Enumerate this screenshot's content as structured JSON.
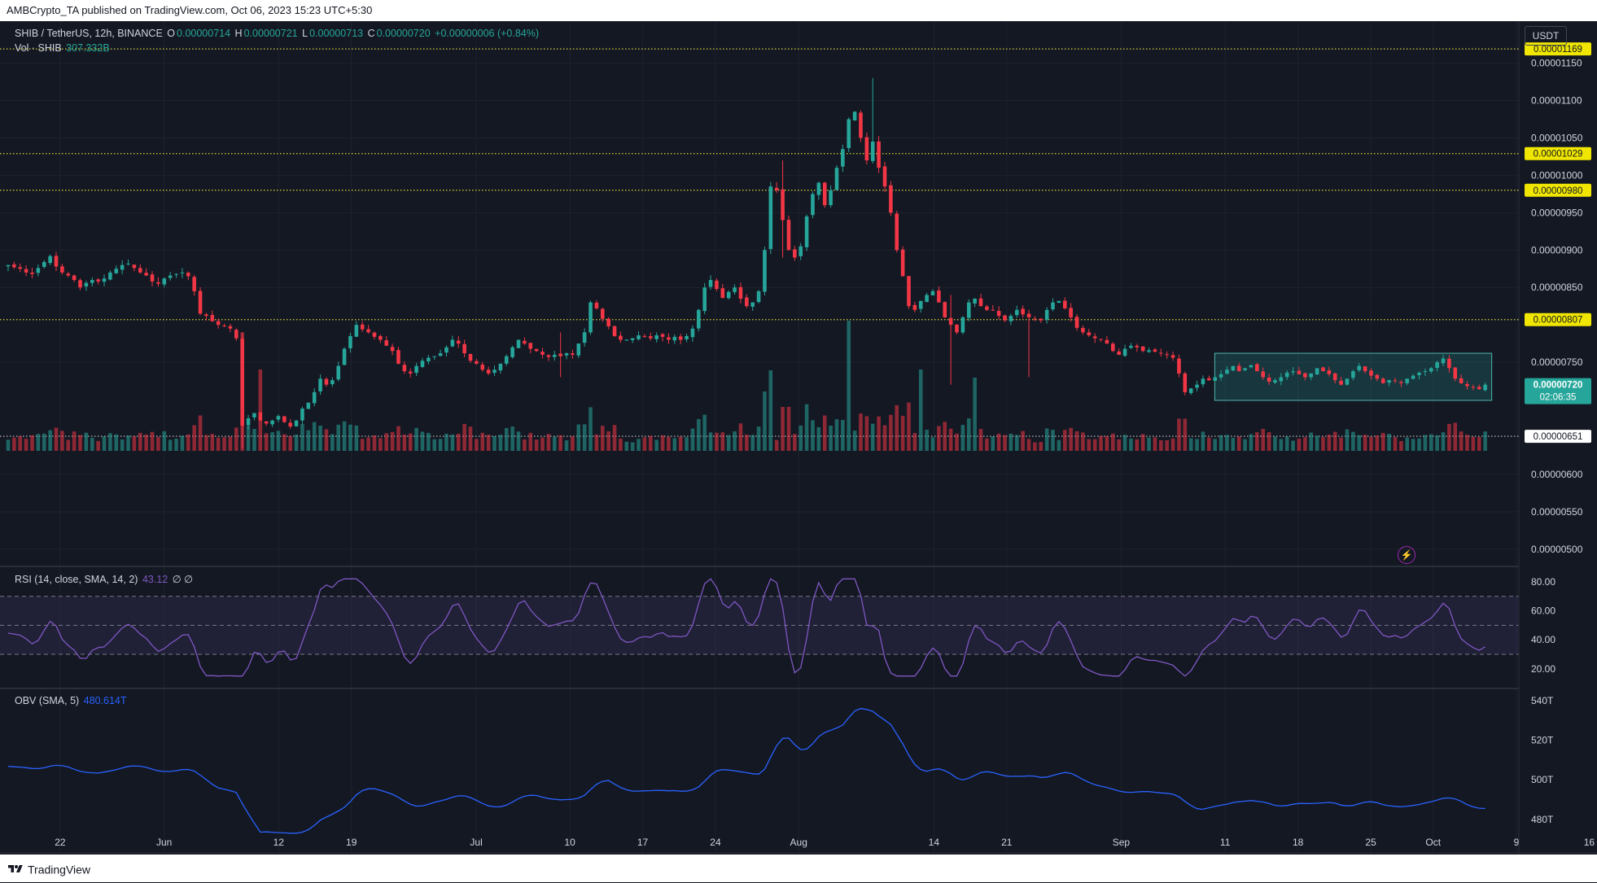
{
  "header": {
    "published": "AMBCrypto_TA published on TradingView.com, Oct 06, 2023 15:23 UTC+5:30",
    "symbol": "SHIB / TetherUS, 12h, BINANCE",
    "o_label": "O",
    "o_value": "0.00000714",
    "h_label": "H",
    "h_value": "0.00000721",
    "l_label": "L",
    "l_value": "0.00000713",
    "c_label": "C",
    "c_value": "0.00000720",
    "change": "+0.00000006 (+0.84%)",
    "vol_label": "Vol · SHIB",
    "vol_value": "307.332B",
    "currency": "USDT"
  },
  "footer": {
    "brand": "TradingView"
  },
  "colors": {
    "up": "#26a69a",
    "down": "#f23645",
    "rsi": "#7e57c2",
    "obv": "#2962ff",
    "level": "#e6e600",
    "bg": "#141823"
  },
  "chart_data": [
    {
      "type": "candlestick",
      "name": "price",
      "ylim": [
        4.9e-06,
        1.18e-05
      ],
      "yticks": [
        "0.00001150",
        "0.00001100",
        "0.00001050",
        "0.00001000",
        "0.00000950",
        "0.00000900",
        "0.00000850",
        "0.00000750",
        "0.00000600",
        "0.00000550",
        "0.00000500"
      ],
      "ytick_values": [
        1.15e-05,
        1.1e-05,
        1.05e-05,
        1e-05,
        9.5e-06,
        9e-06,
        8.5e-06,
        7.5e-06,
        6e-06,
        5.5e-06,
        5e-06
      ],
      "levels": [
        {
          "value": 1.169e-05,
          "label": "0.00001169",
          "style": "yellow"
        },
        {
          "value": 1.029e-05,
          "label": "0.00001029",
          "style": "yellow"
        },
        {
          "value": 9.8e-06,
          "label": "0.00000980",
          "style": "yellow"
        },
        {
          "value": 8.07e-06,
          "label": "0.00000807",
          "style": "yellow"
        },
        {
          "value": 6.51e-06,
          "label": "0.00000651",
          "style": "white"
        }
      ],
      "current": {
        "value": 7.2e-06,
        "label": "0.00000720",
        "countdown": "02:06:35"
      },
      "range_box": {
        "x_start": "2023-09-10",
        "x_end": "2023-10-06",
        "y_low": 6.99e-06,
        "y_high": 7.62e-06
      },
      "closes": [
        8.8e-06,
        8.77e-06,
        8.75e-06,
        8.7e-06,
        8.68e-06,
        8.76e-06,
        8.84e-06,
        8.92e-06,
        8.78e-06,
        8.7e-06,
        8.66e-06,
        8.6e-06,
        8.5e-06,
        8.56e-06,
        8.6e-06,
        8.58e-06,
        8.62e-06,
        8.7e-06,
        8.75e-06,
        8.8e-06,
        8.82e-06,
        8.76e-06,
        8.7e-06,
        8.66e-06,
        8.58e-06,
        8.55e-06,
        8.62e-06,
        8.66e-06,
        8.68e-06,
        8.7e-06,
        8.65e-06,
        8.45e-06,
        8.15e-06,
        8.12e-06,
        8.05e-06,
        8e-06,
        7.98e-06,
        7.95e-06,
        7.82e-06,
        6.65e-06,
        6.75e-06,
        6.82e-06,
        6.72e-06,
        6.68e-06,
        6.72e-06,
        6.78e-06,
        6.7e-06,
        6.64e-06,
        6.72e-06,
        6.88e-06,
        6.96e-06,
        7.1e-06,
        7.28e-06,
        7.2e-06,
        7.26e-06,
        7.45e-06,
        7.68e-06,
        7.85e-06,
        8e-06,
        7.94e-06,
        7.9e-06,
        7.84e-06,
        7.8e-06,
        7.72e-06,
        7.65e-06,
        7.48e-06,
        7.38e-06,
        7.35e-06,
        7.45e-06,
        7.52e-06,
        7.56e-06,
        7.58e-06,
        7.62e-06,
        7.7e-06,
        7.8e-06,
        7.75e-06,
        7.62e-06,
        7.52e-06,
        7.48e-06,
        7.4e-06,
        7.35e-06,
        7.4e-06,
        7.48e-06,
        7.58e-06,
        7.7e-06,
        7.8e-06,
        7.75e-06,
        7.68e-06,
        7.65e-06,
        7.6e-06,
        7.57e-06,
        7.6e-06,
        7.58e-06,
        7.62e-06,
        7.6e-06,
        7.75e-06,
        7.9e-06,
        8.3e-06,
        8.22e-06,
        8.08e-06,
        7.98e-06,
        7.85e-06,
        7.8e-06,
        7.8e-06,
        7.82e-06,
        7.86e-06,
        7.84e-06,
        7.82e-06,
        7.86e-06,
        7.84e-06,
        7.8e-06,
        7.84e-06,
        7.8e-06,
        7.85e-06,
        7.95e-06,
        8.2e-06,
        8.5e-06,
        8.6e-06,
        8.48e-06,
        8.36e-06,
        8.44e-06,
        8.5e-06,
        8.35e-06,
        8.25e-06,
        8.3e-06,
        8.45e-06,
        9e-06,
        9.85e-06,
        9.8e-06,
        9.4e-06,
        9e-06,
        8.9e-06,
        9.05e-06,
        9.45e-06,
        9.75e-06,
        9.9e-06,
        9.6e-06,
        9.8e-06,
        1.01e-05,
        1.035e-05,
        1.075e-05,
        1.085e-05,
        1.05e-05,
        1.02e-05,
        1.045e-05,
        1.01e-05,
        9.85e-06,
        9.5e-06,
        9e-06,
        8.65e-06,
        8.25e-06,
        8.2e-06,
        8.32e-06,
        8.4e-06,
        8.45e-06,
        8.3e-06,
        8.1e-06,
        8e-06,
        7.9e-06,
        8.1e-06,
        8.3e-06,
        8.35e-06,
        8.25e-06,
        8.2e-06,
        8.2e-06,
        8.12e-06,
        8.06e-06,
        8.12e-06,
        8.2e-06,
        8.14e-06,
        8.1e-06,
        8.08e-06,
        8.06e-06,
        8.2e-06,
        8.3e-06,
        8.32e-06,
        8.22e-06,
        8.1e-06,
        7.96e-06,
        7.9e-06,
        7.86e-06,
        7.82e-06,
        7.8e-06,
        7.75e-06,
        7.65e-06,
        7.6e-06,
        7.68e-06,
        7.72e-06,
        7.7e-06,
        7.65e-06,
        7.66e-06,
        7.64e-06,
        7.62e-06,
        7.6e-06,
        7.56e-06,
        7.35e-06,
        7.1e-06,
        7.15e-06,
        7.2e-06,
        7.28e-06,
        7.26e-06,
        7.3e-06,
        7.34e-06,
        7.4e-06,
        7.45e-06,
        7.38e-06,
        7.42e-06,
        7.46e-06,
        7.38e-06,
        7.3e-06,
        7.24e-06,
        7.26e-06,
        7.3e-06,
        7.36e-06,
        7.38e-06,
        7.34e-06,
        7.3e-06,
        7.35e-06,
        7.42e-06,
        7.38e-06,
        7.34e-06,
        7.26e-06,
        7.2e-06,
        7.28e-06,
        7.38e-06,
        7.45e-06,
        7.38e-06,
        7.32e-06,
        7.28e-06,
        7.22e-06,
        7.26e-06,
        7.25e-06,
        7.22e-06,
        7.28e-06,
        7.32e-06,
        7.36e-06,
        7.38e-06,
        7.42e-06,
        7.5e-06,
        7.55e-06,
        7.42e-06,
        7.28e-06,
        7.22e-06,
        7.18e-06,
        7.16e-06,
        7.14e-06,
        7.2e-06
      ]
    },
    {
      "type": "bar",
      "name": "volume",
      "label": "Vol · SHIB",
      "spikes": [
        {
          "date": "2023-06-10",
          "value": 100
        },
        {
          "date": "2023-08-06",
          "value": 160
        },
        {
          "date": "2023-08-13",
          "value": 100
        },
        {
          "date": "2023-08-18",
          "value": 90
        }
      ]
    },
    {
      "type": "line",
      "name": "rsi",
      "label": "RSI (14, close, SMA, 14, 2)",
      "value_label": "43.12",
      "extra_label": "∅ ∅",
      "ylim": [
        12,
        85
      ],
      "yticks": [
        "80.00",
        "60.00",
        "40.00",
        "20.00"
      ],
      "ytick_values": [
        80,
        60,
        40,
        20
      ],
      "bands": [
        70,
        50,
        30
      ]
    },
    {
      "type": "line",
      "name": "obv",
      "label": "OBV (SMA, 5)",
      "value_label": "480.614T",
      "ylim": [
        468,
        542
      ],
      "yticks": [
        "540T",
        "520T",
        "500T",
        "480T"
      ],
      "ytick_values": [
        540,
        520,
        500,
        480
      ]
    }
  ],
  "x_axis": {
    "start": "2023-05-17",
    "end": "2023-10-18",
    "ticks": [
      {
        "label": "22",
        "date": "2023-05-22"
      },
      {
        "label": "Jun",
        "date": "2023-06-01"
      },
      {
        "label": "12",
        "date": "2023-06-12"
      },
      {
        "label": "19",
        "date": "2023-06-19"
      },
      {
        "label": "Jul",
        "date": "2023-07-01"
      },
      {
        "label": "10",
        "date": "2023-07-10"
      },
      {
        "label": "17",
        "date": "2023-07-17"
      },
      {
        "label": "24",
        "date": "2023-07-24"
      },
      {
        "label": "Aug",
        "date": "2023-08-01"
      },
      {
        "label": "14",
        "date": "2023-08-14"
      },
      {
        "label": "21",
        "date": "2023-08-21"
      },
      {
        "label": "Sep",
        "date": "2023-09-01"
      },
      {
        "label": "11",
        "date": "2023-09-11"
      },
      {
        "label": "18",
        "date": "2023-09-18"
      },
      {
        "label": "25",
        "date": "2023-09-25"
      },
      {
        "label": "Oct",
        "date": "2023-10-01"
      },
      {
        "label": "9",
        "date": "2023-10-09"
      },
      {
        "label": "16",
        "date": "2023-10-16"
      }
    ]
  }
}
